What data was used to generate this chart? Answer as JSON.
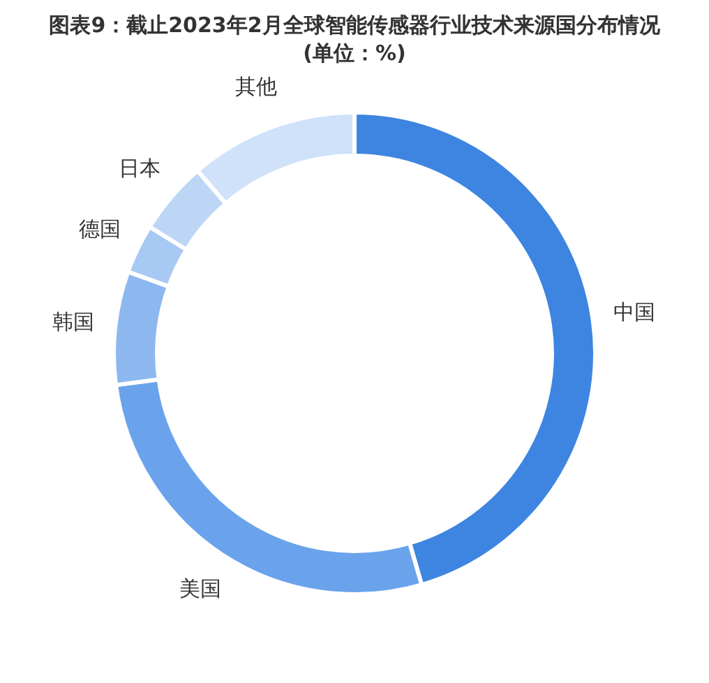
{
  "chart_data": {
    "type": "donut",
    "title": "图表9：截止2023年2月全球智能传感器行业技术来源国分布情况(单位：%)",
    "categories": [
      "中国",
      "美国",
      "韩国",
      "德国",
      "日本",
      "其他"
    ],
    "values": [
      45.5,
      27.4,
      7.6,
      3.3,
      4.9,
      11.3
    ],
    "colors": [
      "#3d85e0",
      "#6aa3ec",
      "#8db8ef",
      "#a8c9f3",
      "#bdd6f6",
      "#cfe2fa"
    ],
    "legend": false
  }
}
